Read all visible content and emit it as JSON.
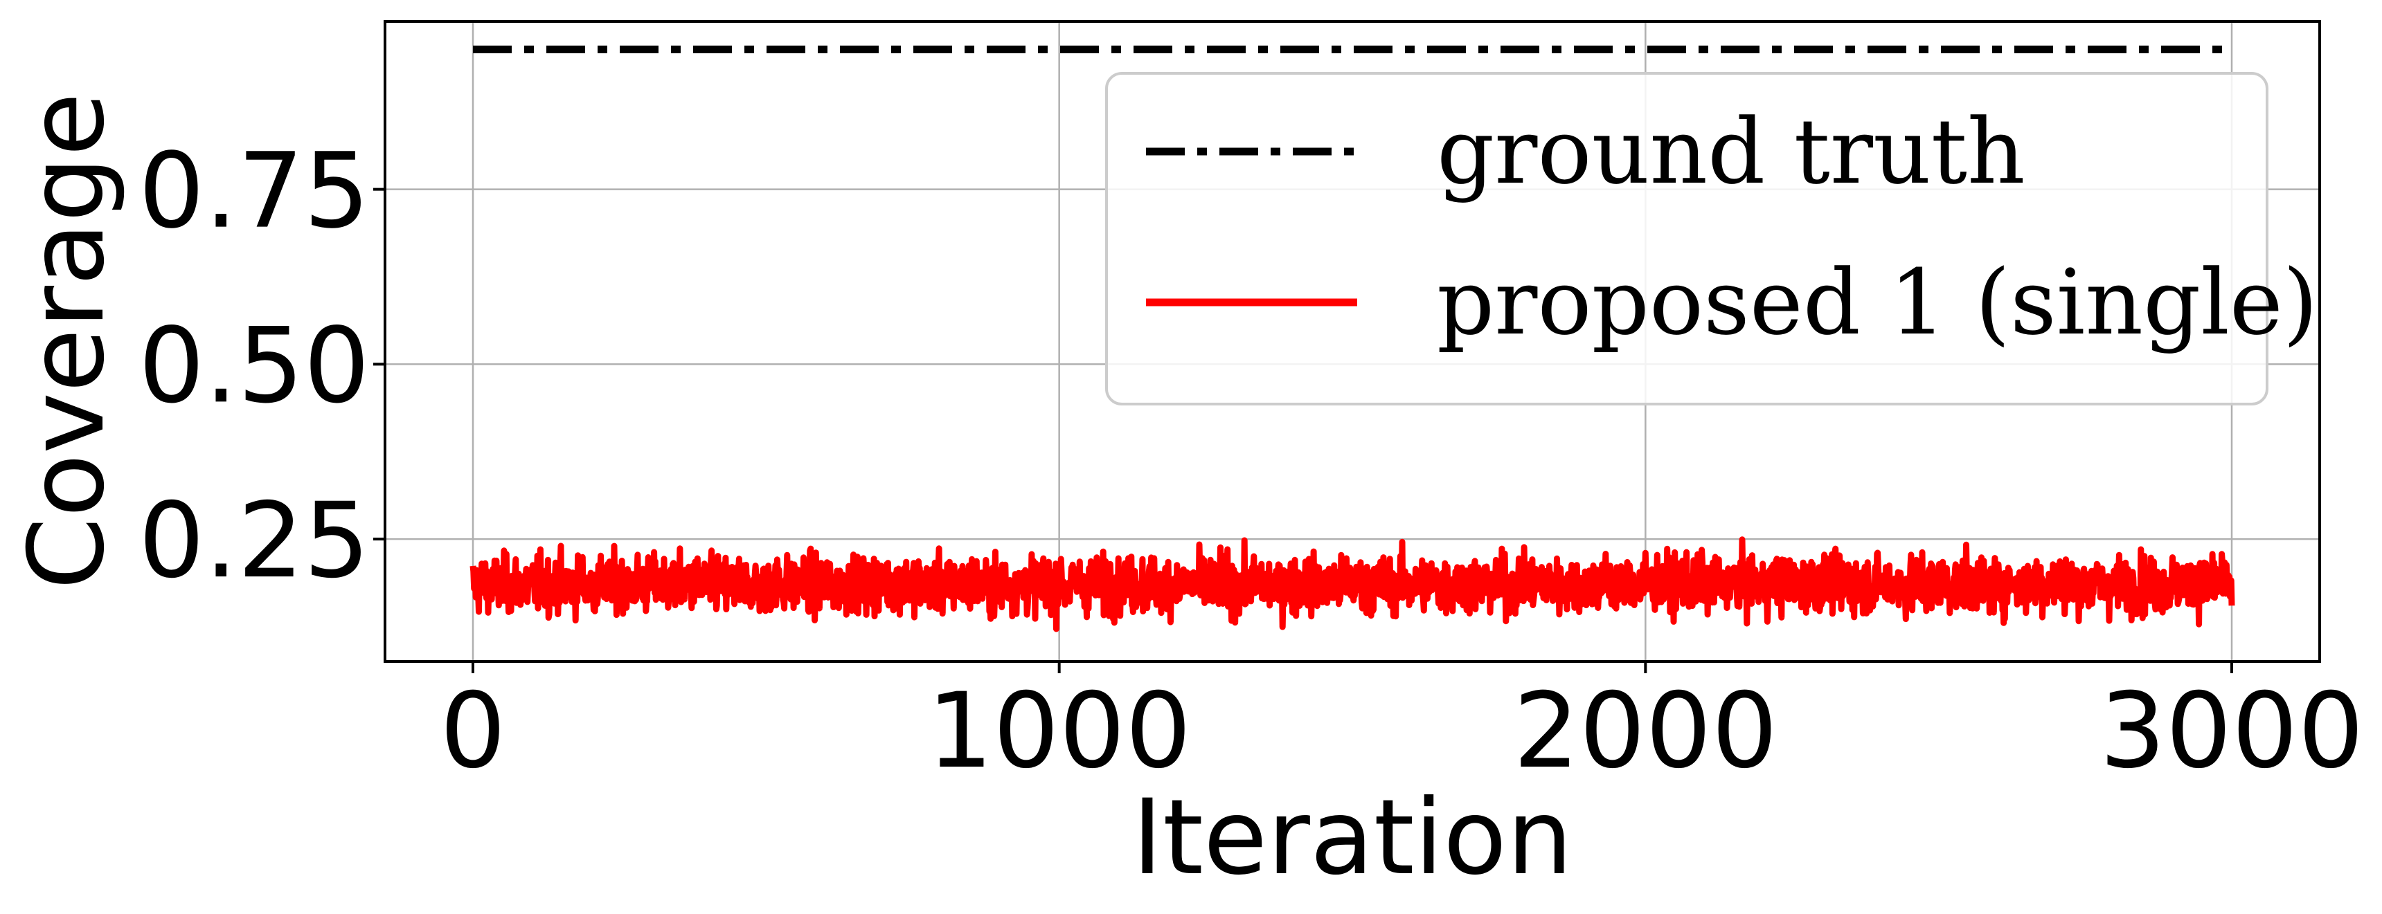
{
  "chart_data": {
    "type": "line",
    "xlabel": "Iteration",
    "ylabel": "Coverage",
    "xlim": [
      -150,
      3150
    ],
    "ylim": [
      0.075,
      0.99
    ],
    "x_ticks": [
      0,
      1000,
      2000,
      3000
    ],
    "x_tick_labels": [
      "0",
      "1000",
      "2000",
      "3000"
    ],
    "y_ticks": [
      0.25,
      0.5,
      0.75
    ],
    "y_tick_labels": [
      "0.25",
      "0.50",
      "0.75"
    ],
    "grid": true,
    "legend": {
      "placement": "top-right"
    },
    "series": [
      {
        "name": "ground truth",
        "style": "dash-dot",
        "color": "#000000",
        "x": [
          0,
          3000
        ],
        "y": [
          0.95,
          0.95
        ]
      },
      {
        "name": "proposed 1 (single)",
        "style": "solid",
        "color": "#ff0000",
        "x_range": [
          0,
          3000
        ],
        "points": 3001,
        "mean": 0.185,
        "min": 0.12,
        "max": 0.25,
        "spread": 0.02
      }
    ]
  }
}
